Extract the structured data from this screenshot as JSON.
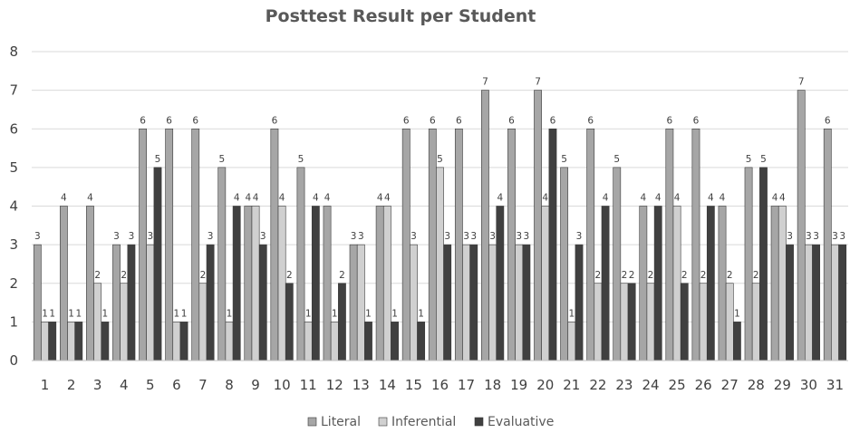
{
  "chart_data": {
    "type": "bar",
    "title": "Posttest Result per Student",
    "xlabel": "",
    "ylabel": "",
    "ylim": [
      0,
      8
    ],
    "yticks": [
      "0",
      "1",
      "2",
      "3",
      "4",
      "5",
      "6",
      "7",
      "8"
    ],
    "grid": true,
    "legend_position": "bottom",
    "categories": [
      "1",
      "2",
      "3",
      "4",
      "5",
      "6",
      "7",
      "8",
      "9",
      "10",
      "11",
      "12",
      "13",
      "14",
      "15",
      "16",
      "17",
      "18",
      "19",
      "20",
      "21",
      "22",
      "23",
      "24",
      "25",
      "26",
      "27",
      "28",
      "29",
      "30",
      "31"
    ],
    "series": [
      {
        "name": "Literal",
        "color": "#a6a6a6",
        "values": [
          3,
          4,
          4,
          3,
          6,
          6,
          6,
          5,
          4,
          6,
          5,
          4,
          3,
          4,
          6,
          6,
          6,
          7,
          6,
          7,
          5,
          6,
          5,
          4,
          6,
          6,
          4,
          5,
          4,
          7,
          6
        ]
      },
      {
        "name": "Inferential",
        "color": "#d0d0d0",
        "values": [
          1,
          1,
          2,
          2,
          3,
          1,
          2,
          1,
          4,
          4,
          1,
          1,
          3,
          4,
          3,
          5,
          3,
          3,
          3,
          4,
          1,
          2,
          2,
          2,
          4,
          2,
          2,
          2,
          4,
          3,
          3
        ]
      },
      {
        "name": "Evaluative",
        "color": "#404040",
        "values": [
          1,
          1,
          1,
          3,
          5,
          1,
          3,
          4,
          3,
          2,
          4,
          2,
          1,
          1,
          1,
          3,
          3,
          4,
          3,
          6,
          3,
          4,
          2,
          4,
          2,
          4,
          1,
          5,
          3,
          3,
          3
        ]
      }
    ]
  }
}
